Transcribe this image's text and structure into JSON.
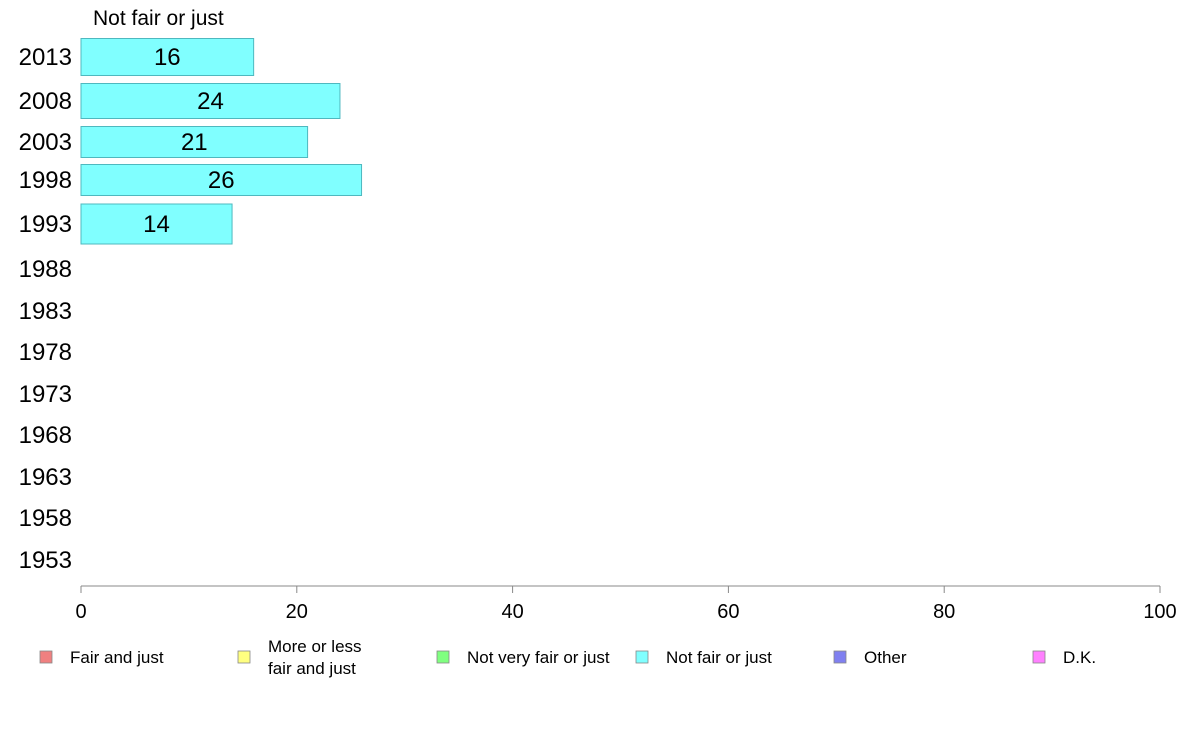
{
  "chart_data": {
    "type": "bar",
    "orientation": "horizontal",
    "title": "Not fair or just",
    "categories": [
      "2013",
      "2008",
      "2003",
      "1998",
      "1993",
      "1988",
      "1983",
      "1978",
      "1973",
      "1968",
      "1963",
      "1958",
      "1953"
    ],
    "series": [
      {
        "name": "Not fair or just",
        "values": [
          16,
          24,
          21,
          26,
          14,
          null,
          null,
          null,
          null,
          null,
          null,
          null,
          null
        ]
      }
    ],
    "bar_color": "#80ffff",
    "bar_border_color": "#4fb8bf",
    "xlim": [
      0,
      100
    ],
    "xticks": [
      0,
      20,
      40,
      60,
      80,
      100
    ],
    "grid": false,
    "legend_position": "bottom",
    "legend": [
      {
        "label": "Fair and just",
        "color": "#f08080"
      },
      {
        "label": "More or less fair and just",
        "color": "#ffff80"
      },
      {
        "label": "Not very fair or just",
        "color": "#80ff80"
      },
      {
        "label": "Not fair or just",
        "color": "#80ffff"
      },
      {
        "label": "Other",
        "color": "#8080f0"
      },
      {
        "label": "D.K.",
        "color": "#ff80ff"
      }
    ]
  }
}
